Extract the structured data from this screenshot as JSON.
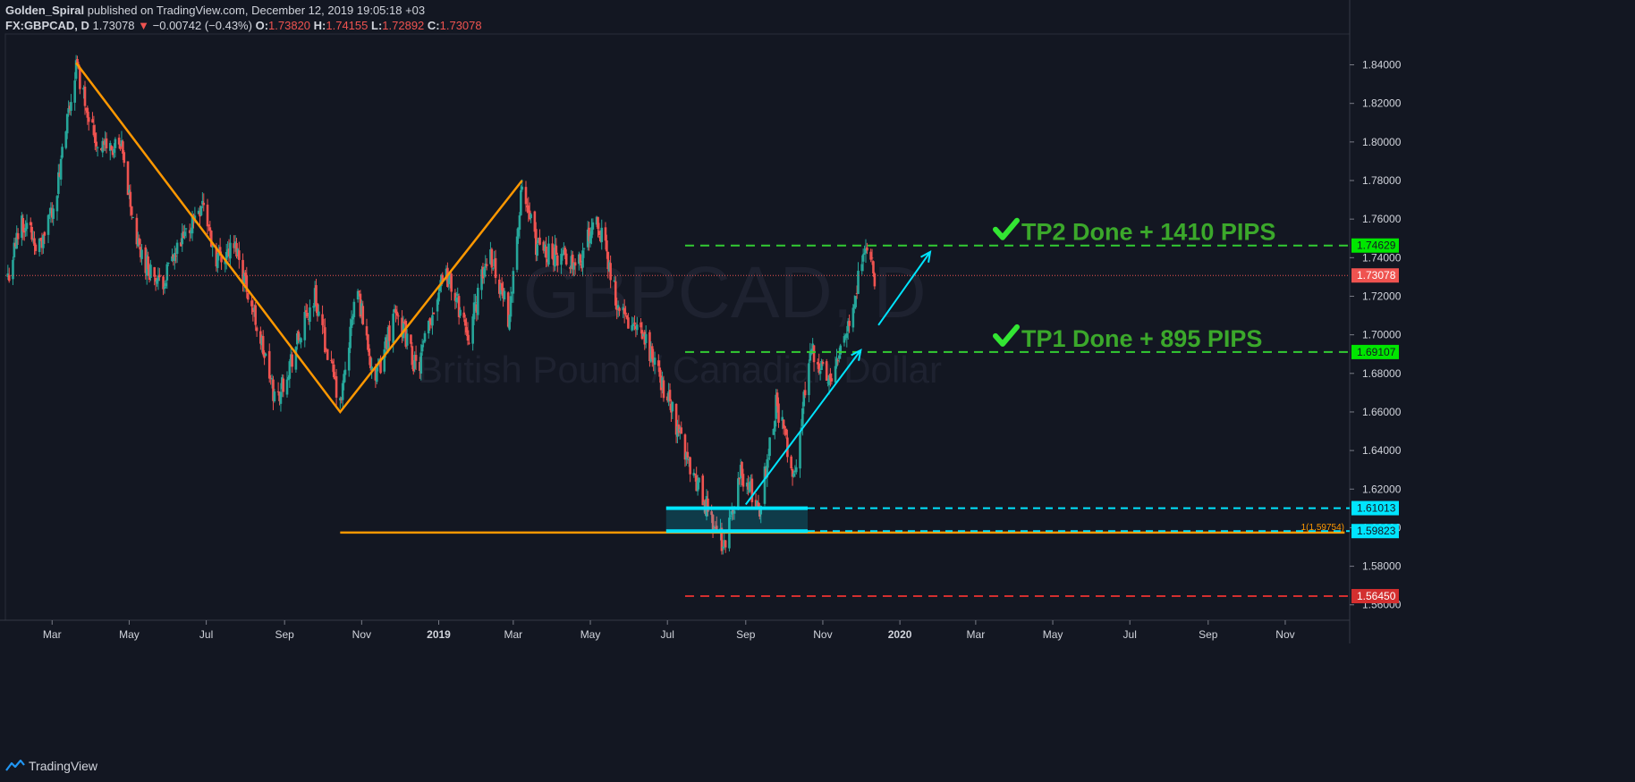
{
  "header": {
    "author": "Golden_Spiral",
    "published": "published on TradingView.com, December 12, 2019 19:05:18 +03",
    "symbol": "FX:GBPCAD, D",
    "last": "1.73078",
    "change_arrow": "▼",
    "change": "−0.00742 (−0.43%)",
    "o_label": "O:",
    "o": "1.73820",
    "h_label": "H:",
    "h": "1.74155",
    "l_label": "L:",
    "l": "1.72892",
    "c_label": "C:",
    "c": "1.73078"
  },
  "footer": {
    "brand": "TradingView"
  },
  "chart_data": {
    "type": "candlestick",
    "watermark": {
      "symbol": "GBPCAD, D",
      "description": "British Pound / Canadian Dollar"
    },
    "ylim": [
      1.552,
      1.856
    ],
    "y_ticks": [
      1.56,
      1.58,
      1.6,
      1.62,
      1.64,
      1.66,
      1.68,
      1.7,
      1.72,
      1.74,
      1.76,
      1.78,
      1.8,
      1.82,
      1.84
    ],
    "x_ticks": [
      "Mar",
      "May",
      "Jul",
      "Sep",
      "Nov",
      "2019",
      "Mar",
      "May",
      "Jul",
      "Sep",
      "Nov",
      "2020",
      "Mar",
      "May",
      "Jul",
      "Sep",
      "Nov"
    ],
    "x_tick_dates": [
      "2018-03-01",
      "2018-05-01",
      "2018-07-01",
      "2018-09-01",
      "2018-11-01",
      "2019-01-01",
      "2019-03-01",
      "2019-05-01",
      "2019-07-01",
      "2019-09-01",
      "2019-11-01",
      "2020-01-01",
      "2020-03-01",
      "2020-05-01",
      "2020-07-01",
      "2020-09-01",
      "2020-11-01"
    ],
    "x_range": [
      "2018-01-23",
      "2020-12-22"
    ],
    "price_path": [
      [
        "2018-01-25",
        1.73
      ],
      [
        "2018-02-05",
        1.76
      ],
      [
        "2018-02-20",
        1.745
      ],
      [
        "2018-03-05",
        1.775
      ],
      [
        "2018-03-20",
        1.84
      ],
      [
        "2018-04-05",
        1.8
      ],
      [
        "2018-04-25",
        1.795
      ],
      [
        "2018-05-08",
        1.745
      ],
      [
        "2018-05-25",
        1.725
      ],
      [
        "2018-06-10",
        1.745
      ],
      [
        "2018-06-28",
        1.77
      ],
      [
        "2018-07-08",
        1.74
      ],
      [
        "2018-07-25",
        1.745
      ],
      [
        "2018-08-10",
        1.705
      ],
      [
        "2018-08-25",
        1.665
      ],
      [
        "2018-09-08",
        1.69
      ],
      [
        "2018-09-25",
        1.72
      ],
      [
        "2018-10-15",
        1.662
      ],
      [
        "2018-10-28",
        1.725
      ],
      [
        "2018-11-12",
        1.675
      ],
      [
        "2018-11-28",
        1.715
      ],
      [
        "2018-12-15",
        1.68
      ],
      [
        "2019-01-05",
        1.735
      ],
      [
        "2019-01-25",
        1.7
      ],
      [
        "2019-02-10",
        1.745
      ],
      [
        "2019-02-25",
        1.71
      ],
      [
        "2019-03-08",
        1.775
      ],
      [
        "2019-03-20",
        1.745
      ],
      [
        "2019-04-10",
        1.74
      ],
      [
        "2019-04-25",
        1.74
      ],
      [
        "2019-05-05",
        1.765
      ],
      [
        "2019-05-25",
        1.71
      ],
      [
        "2019-06-15",
        1.695
      ],
      [
        "2019-07-05",
        1.66
      ],
      [
        "2019-07-20",
        1.63
      ],
      [
        "2019-08-05",
        1.605
      ],
      [
        "2019-08-15",
        1.59
      ],
      [
        "2019-08-28",
        1.628
      ],
      [
        "2019-09-12",
        1.61
      ],
      [
        "2019-09-25",
        1.665
      ],
      [
        "2019-10-10",
        1.625
      ],
      [
        "2019-10-22",
        1.695
      ],
      [
        "2019-11-05",
        1.675
      ],
      [
        "2019-11-20",
        1.705
      ],
      [
        "2019-12-05",
        1.745
      ],
      [
        "2019-12-12",
        1.731
      ]
    ],
    "last_price": 1.73078,
    "price_labels": [
      {
        "value": 1.74629,
        "label": "1.74629",
        "bg": "#00e600",
        "fg": "#131722"
      },
      {
        "value": 1.73078,
        "label": "1.73078",
        "bg": "#ef5350",
        "fg": "#ffffff"
      },
      {
        "value": 1.69107,
        "label": "1.69107",
        "bg": "#00e600",
        "fg": "#131722"
      },
      {
        "value": 1.61013,
        "label": "1.61013",
        "bg": "#00e5ff",
        "fg": "#131722"
      },
      {
        "value": 1.59823,
        "label": "1.59823",
        "bg": "#00e5ff",
        "fg": "#131722"
      },
      {
        "value": 1.5645,
        "label": "1.56450",
        "bg": "#d32f2f",
        "fg": "#ffffff"
      }
    ],
    "fib_label": "1(1.59754)",
    "annotations": {
      "zigzag": [
        [
          "2018-03-20",
          1.841
        ],
        [
          "2018-10-15",
          1.66
        ],
        [
          "2019-03-08",
          1.78
        ]
      ],
      "orange_support": {
        "from": "2018-10-15",
        "to": "2020-12-18",
        "value": 1.5975
      },
      "tp2": {
        "text": "TP2  Done + 1410 PIPS",
        "value": 1.74629,
        "from": "2019-07-15"
      },
      "tp1": {
        "text": "TP1  Done + 895 PIPS",
        "value": 1.69107,
        "from": "2019-07-15"
      },
      "stop": {
        "value": 1.5645,
        "from": "2019-07-15"
      },
      "box": {
        "from": "2019-06-30",
        "to": "2019-10-20",
        "top": 1.6101,
        "bottom": 1.5982
      },
      "arrows": [
        {
          "from": [
            "2019-09-01",
            1.612
          ],
          "to": [
            "2019-12-01",
            1.692
          ]
        },
        {
          "from": [
            "2019-12-15",
            1.705
          ],
          "to": [
            "2020-01-25",
            1.743
          ]
        }
      ]
    },
    "colors": {
      "up": "#26a69a",
      "down": "#ef5350",
      "zigzag": "#ff9800",
      "tp": "#33cc33",
      "tp_text": "#3ba82b",
      "stop": "#d32f2f",
      "cyan": "#00e5ff"
    }
  }
}
